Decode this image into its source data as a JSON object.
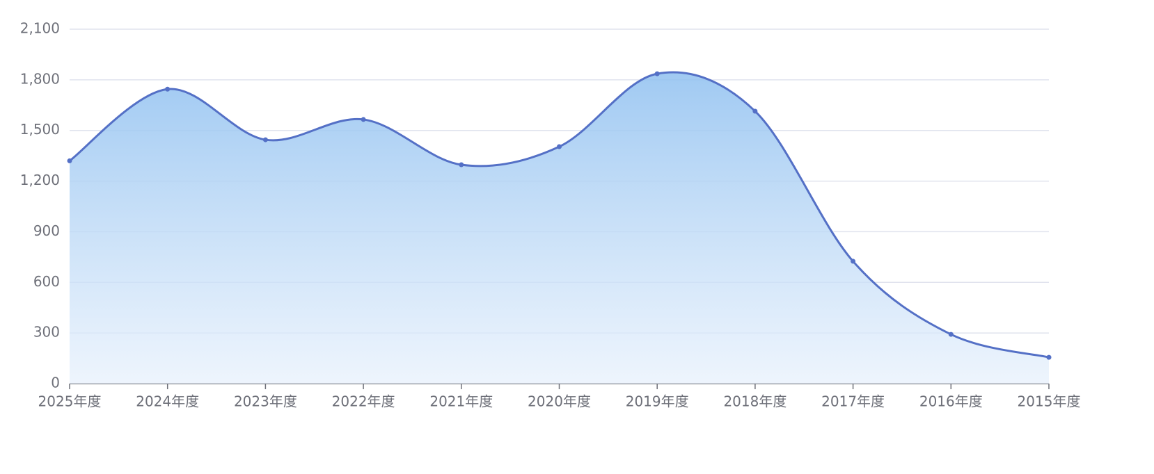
{
  "chart_data": {
    "type": "line",
    "area": true,
    "smooth": true,
    "color": "#5470c6",
    "categories": [
      "2025年度",
      "2024年度",
      "2023年度",
      "2022年度",
      "2021年度",
      "2020年度",
      "2019年度",
      "2018年度",
      "2017年度",
      "2016年度",
      "2015年度"
    ],
    "values": [
      1320,
      1745,
      1445,
      1565,
      1297,
      1404,
      1836,
      1614,
      725,
      292,
      156
    ],
    "ylim": [
      0,
      2100
    ],
    "yticks": [
      0,
      300,
      600,
      900,
      {
        "value": 1200,
        "label": "1,200"
      },
      {
        "value": 1500,
        "label": "1,500"
      },
      {
        "value": 1800,
        "label": "1,800"
      },
      {
        "value": 2100,
        "label": "2,100"
      }
    ],
    "grid": true
  }
}
